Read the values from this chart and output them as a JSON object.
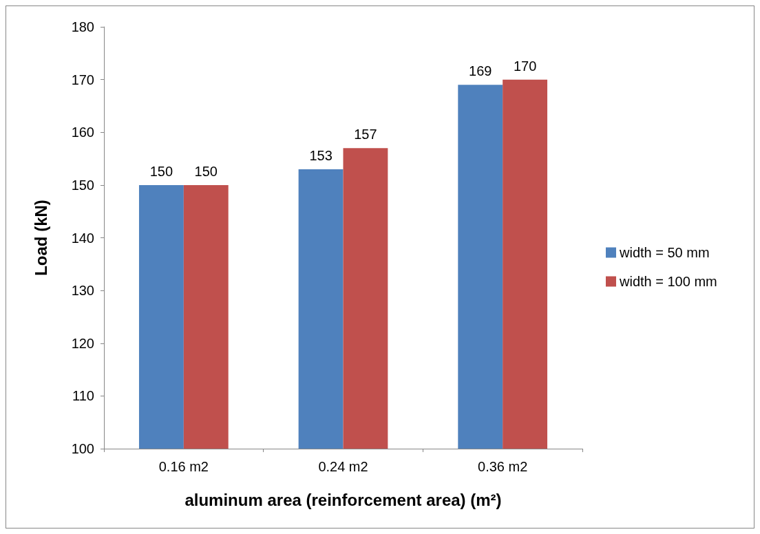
{
  "chart_data": {
    "type": "bar",
    "xlabel": "aluminum area (reinforcement area) (m²)",
    "ylabel": "Load (kN)",
    "categories": [
      "0.16 m2",
      "0.24 m2",
      "0.36 m2"
    ],
    "series": [
      {
        "name": "width = 50 mm",
        "color": "#4f81bd",
        "values": [
          150,
          153,
          169
        ]
      },
      {
        "name": "width = 100 mm",
        "color": "#c0504d",
        "values": [
          150,
          157,
          170
        ]
      }
    ],
    "ylim": [
      100,
      180
    ],
    "yticks": [
      100,
      110,
      120,
      130,
      140,
      150,
      160,
      170,
      180
    ],
    "grid": false,
    "legend": "right",
    "data_labels": true
  }
}
